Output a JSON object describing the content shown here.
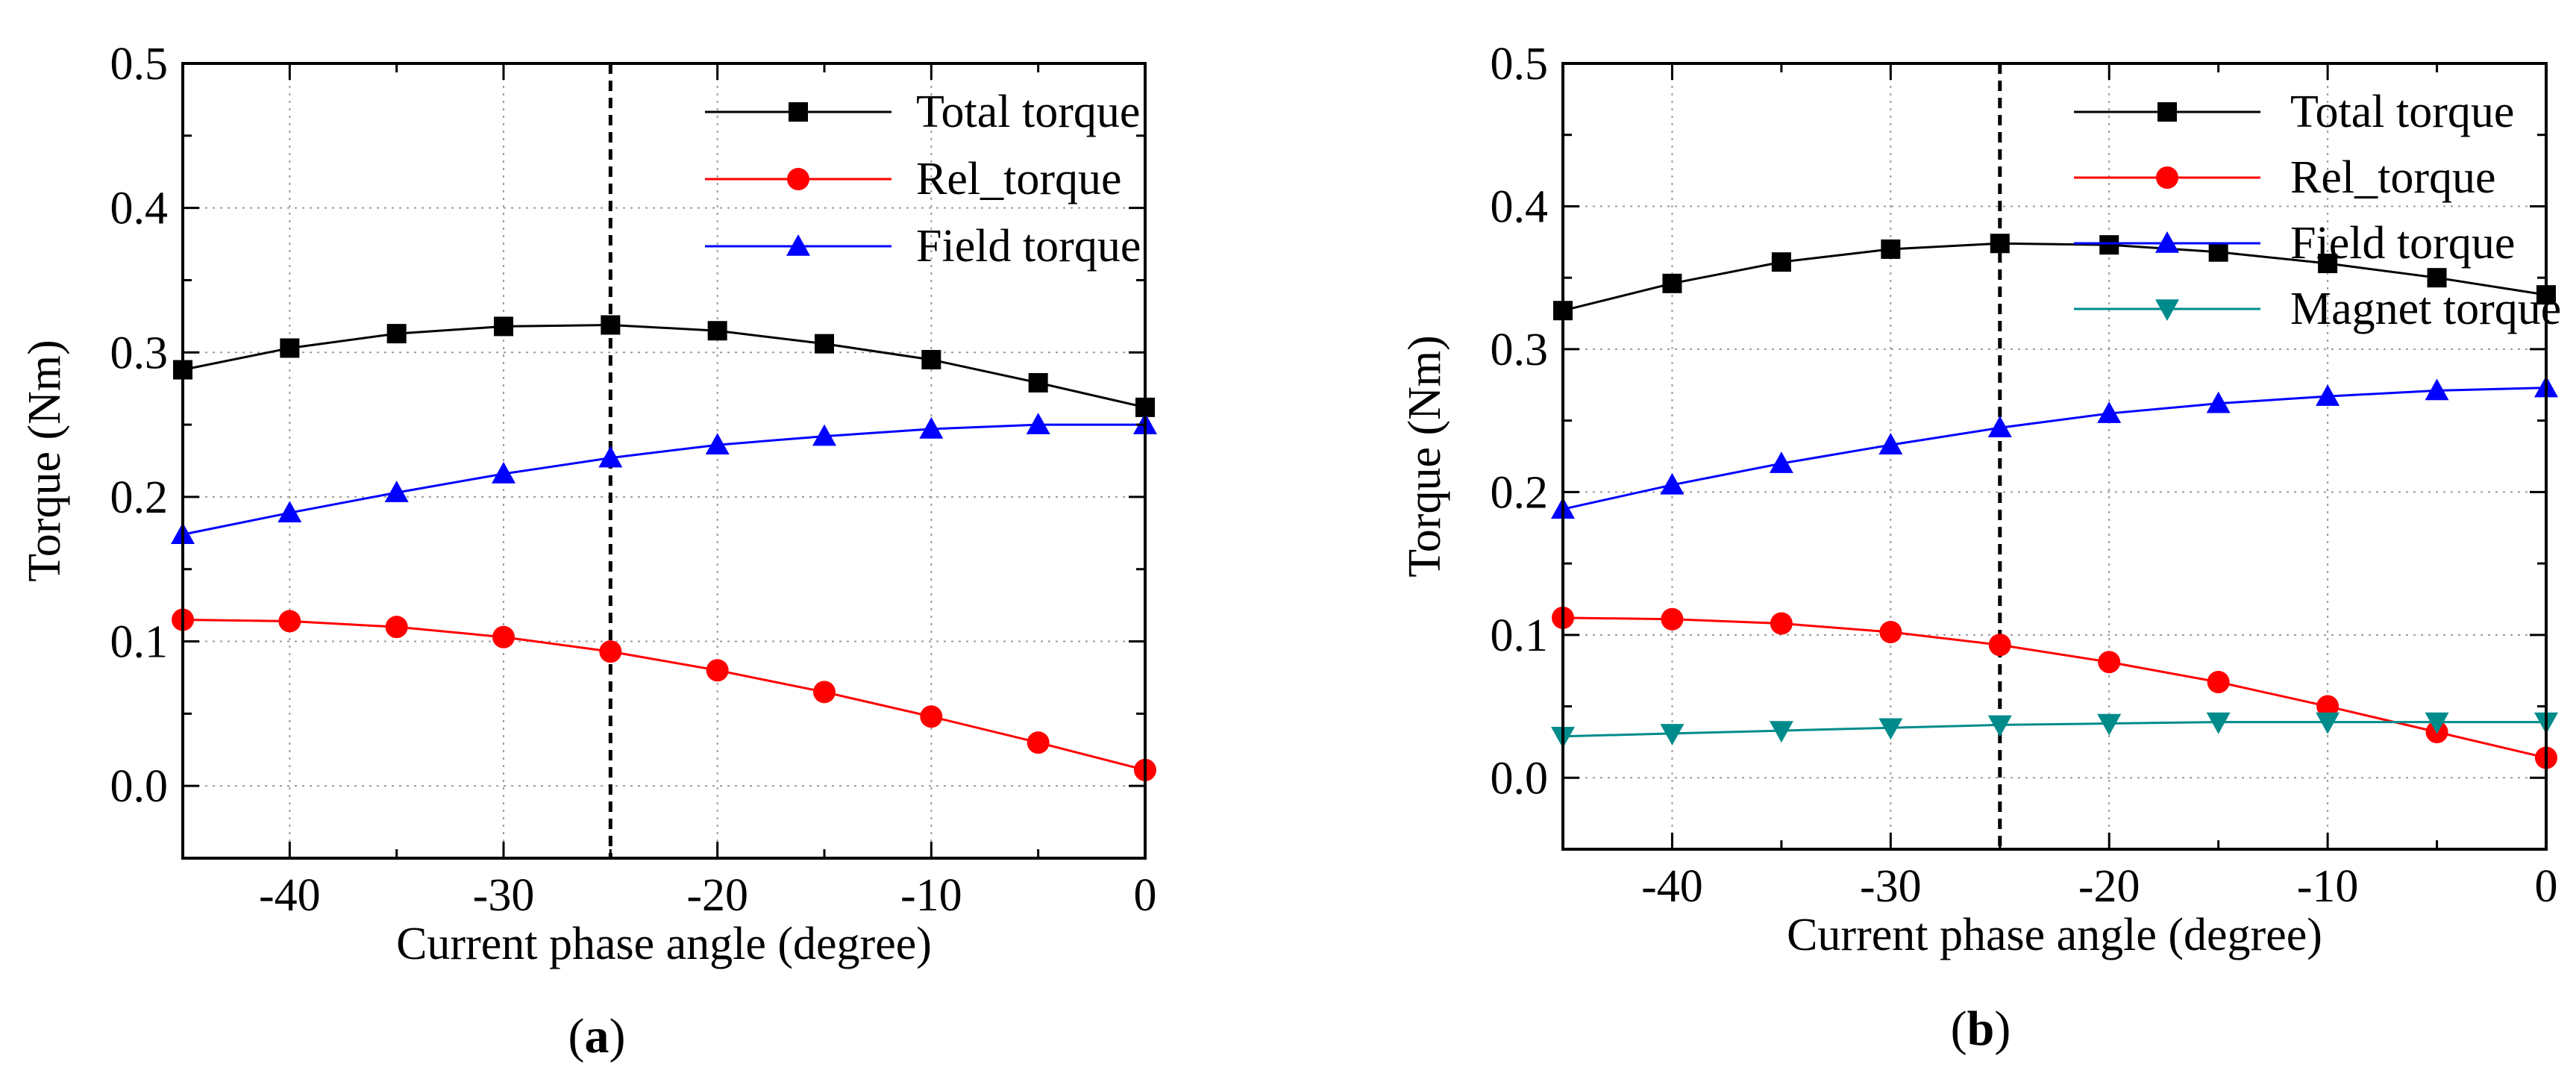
{
  "chart_data": [
    {
      "panel_label": "(a)",
      "type": "line",
      "xlabel": "Current phase angle (degree)",
      "ylabel": "Torque (Nm)",
      "xlim": [
        -45,
        0
      ],
      "ylim": [
        -0.05,
        0.5
      ],
      "xticks": [
        -40,
        -30,
        -20,
        -10,
        0
      ],
      "xtick_labels": [
        "-40",
        "-30",
        "-20",
        "-10",
        "0"
      ],
      "yticks": [
        0.0,
        0.1,
        0.2,
        0.3,
        0.4,
        0.5
      ],
      "ytick_labels": [
        "0.0",
        "0.1",
        "0.2",
        "0.3",
        "0.4",
        "0.5"
      ],
      "grid": true,
      "legend_position": "top-right",
      "vline_x": -25,
      "x": [
        -45,
        -40,
        -35,
        -30,
        -25,
        -20,
        -15,
        -10,
        -5,
        0
      ],
      "series": [
        {
          "name": "Total torque",
          "color": "#000000",
          "marker": "square",
          "values": [
            0.288,
            0.303,
            0.313,
            0.318,
            0.319,
            0.315,
            0.306,
            0.295,
            0.279,
            0.262
          ]
        },
        {
          "name": "Rel_torque",
          "color": "#ff0000",
          "marker": "circle",
          "values": [
            0.115,
            0.114,
            0.11,
            0.103,
            0.093,
            0.08,
            0.065,
            0.048,
            0.03,
            0.011
          ]
        },
        {
          "name": "Field torque",
          "color": "#0000ff",
          "marker": "triangle-up",
          "values": [
            0.174,
            0.189,
            0.203,
            0.216,
            0.227,
            0.236,
            0.242,
            0.247,
            0.25,
            0.25
          ]
        }
      ]
    },
    {
      "panel_label": "(b)",
      "type": "line",
      "xlabel": "Current phase angle (degree)",
      "ylabel": "Torque (Nm)",
      "xlim": [
        -45,
        0
      ],
      "ylim": [
        -0.05,
        0.5
      ],
      "xticks": [
        -40,
        -30,
        -20,
        -10,
        0
      ],
      "xtick_labels": [
        "-40",
        "-30",
        "-20",
        "-10",
        "0"
      ],
      "yticks": [
        0.0,
        0.1,
        0.2,
        0.3,
        0.4,
        0.5
      ],
      "ytick_labels": [
        "0.0",
        "0.1",
        "0.2",
        "0.3",
        "0.4",
        "0.5"
      ],
      "grid": true,
      "legend_position": "top-right",
      "vline_x": -25,
      "x": [
        -45,
        -40,
        -35,
        -30,
        -25,
        -20,
        -15,
        -10,
        -5,
        0
      ],
      "series": [
        {
          "name": "Total torque",
          "color": "#000000",
          "marker": "square",
          "values": [
            0.327,
            0.346,
            0.361,
            0.37,
            0.374,
            0.373,
            0.368,
            0.36,
            0.35,
            0.338
          ]
        },
        {
          "name": "Rel_torque",
          "color": "#ff0000",
          "marker": "circle",
          "values": [
            0.112,
            0.111,
            0.108,
            0.102,
            0.093,
            0.081,
            0.067,
            0.05,
            0.032,
            0.014
          ]
        },
        {
          "name": "Field torque",
          "color": "#0000ff",
          "marker": "triangle-up",
          "values": [
            0.188,
            0.205,
            0.22,
            0.233,
            0.245,
            0.255,
            0.262,
            0.267,
            0.271,
            0.273
          ]
        },
        {
          "name": "Magnet torque",
          "color": "#008b8b",
          "marker": "triangle-down",
          "values": [
            0.029,
            0.031,
            0.033,
            0.035,
            0.037,
            0.038,
            0.039,
            0.039,
            0.039,
            0.039
          ]
        }
      ]
    }
  ]
}
